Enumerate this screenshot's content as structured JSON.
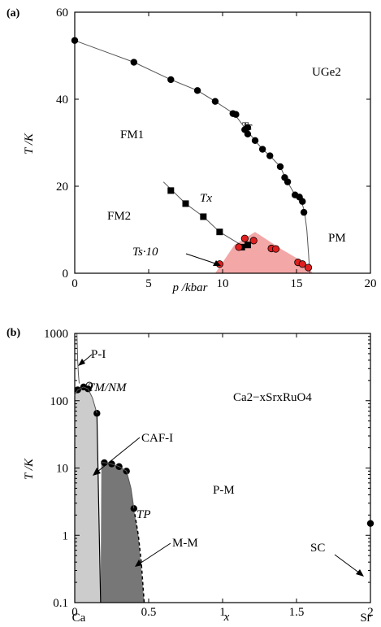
{
  "chart_data": [
    {
      "type": "scatter",
      "panel_label": "(a)",
      "xlabel": "p /kbar",
      "ylabel": "T /K",
      "xlim": [
        0,
        20
      ],
      "ylim": [
        0,
        60
      ],
      "xticks": [
        0,
        5,
        10,
        15,
        20
      ],
      "yticks": [
        0,
        20,
        40,
        60
      ],
      "xtick_labels": [
        "0",
        "5",
        "10",
        "15",
        "20"
      ],
      "ytick_labels": [
        "0",
        "20",
        "40",
        "60"
      ],
      "grid": false,
      "colors": {
        "points": "#000000",
        "red_points": "#e02020",
        "shade": "#f4a7a7"
      },
      "annotations": {
        "material": "UGe2",
        "tc": "Tc",
        "tx": "Tx",
        "ts": "Ts·10",
        "fm1": "FM1",
        "fm2": "FM2",
        "pm": "PM"
      },
      "series": [
        {
          "marker": "circle",
          "values": [
            [
              0,
              53.5
            ],
            [
              4,
              48.5
            ],
            [
              6.5,
              44.5
            ],
            [
              8.3,
              42
            ],
            [
              9.5,
              39.5
            ],
            [
              10.7,
              36.7
            ],
            [
              10.9,
              36.5
            ],
            [
              11.5,
              33
            ],
            [
              11.7,
              33.5
            ],
            [
              11.7,
              32
            ],
            [
              12.2,
              30.5
            ],
            [
              12.7,
              28.5
            ],
            [
              13.2,
              27
            ],
            [
              13.9,
              24.5
            ],
            [
              14.2,
              22
            ],
            [
              14.4,
              21
            ],
            [
              14.9,
              18
            ],
            [
              15.2,
              17.5
            ],
            [
              15.4,
              16.5
            ],
            [
              15.5,
              14
            ]
          ]
        },
        {
          "marker": "square",
          "values": [
            [
              6.5,
              19
            ],
            [
              7.5,
              16
            ],
            [
              8.7,
              13
            ],
            [
              9.8,
              9.5
            ],
            [
              11.3,
              6.0
            ],
            [
              11.7,
              6.5
            ]
          ]
        },
        {
          "marker": "circle-red",
          "values": [
            [
              9.8,
              2.1
            ],
            [
              11.1,
              6.0
            ],
            [
              11.5,
              8.0
            ],
            [
              12.1,
              7.5
            ],
            [
              13.3,
              5.7
            ],
            [
              13.6,
              5.6
            ],
            [
              15.1,
              2.5
            ],
            [
              15.4,
              2.1
            ],
            [
              15.8,
              1.3
            ]
          ]
        }
      ],
      "shaded_region": [
        [
          9.5,
          0
        ],
        [
          10.8,
          6.5
        ],
        [
          12.2,
          9.5
        ],
        [
          14,
          5.5
        ],
        [
          15.5,
          2.5
        ],
        [
          16.1,
          0
        ]
      ],
      "curves": {
        "tc": [
          [
            0,
            53.5
          ],
          [
            4,
            48.5
          ],
          [
            6.5,
            44.5
          ],
          [
            8.3,
            42
          ],
          [
            9.5,
            39.5
          ],
          [
            10.8,
            36.6
          ],
          [
            11.6,
            33
          ],
          [
            12.2,
            30.5
          ],
          [
            12.7,
            28.5
          ],
          [
            13.2,
            27
          ],
          [
            13.9,
            24.5
          ],
          [
            14.3,
            21.5
          ],
          [
            14.9,
            18
          ],
          [
            15.3,
            17
          ],
          [
            15.55,
            14
          ],
          [
            15.7,
            10
          ],
          [
            15.8,
            5
          ],
          [
            15.9,
            0
          ]
        ],
        "tx": [
          [
            6,
            21
          ],
          [
            7.5,
            16
          ],
          [
            8.7,
            13
          ],
          [
            9.8,
            9.5
          ],
          [
            11.5,
            6.0
          ]
        ]
      }
    },
    {
      "type": "scatter",
      "panel_label": "(b)",
      "xlabel": "x",
      "ylabel": "T /K",
      "xscale": "linear",
      "yscale": "log",
      "xlim": [
        0,
        2
      ],
      "ylim": [
        0.1,
        1000
      ],
      "xticks": [
        0,
        0.5,
        1,
        1.5,
        2
      ],
      "yticks": [
        0.1,
        1,
        10,
        100,
        1000
      ],
      "xtick_labels": [
        "0",
        "0.5",
        "1",
        "1.5",
        "2"
      ],
      "ytick_labels": [
        "0.1",
        "1",
        "10",
        "100",
        "1000"
      ],
      "x_end_labels": [
        "Ca",
        "Sr"
      ],
      "grid": false,
      "colors": {
        "points": "#000000",
        "caf_region": "#cccccc",
        "mm_region": "#777777"
      },
      "annotations": {
        "material": "Ca2−xSrxRuO4",
        "pi": "P-I",
        "tmnm": "TM/NM",
        "cafi": "CAF-I",
        "pm": "P-M",
        "tp": "TP",
        "mm": "M-M",
        "sc": "SC"
      },
      "series": [
        {
          "marker": "circle",
          "values": [
            [
              0.02,
              145
            ],
            [
              0.06,
              160
            ],
            [
              0.09,
              150
            ],
            [
              0.15,
              65
            ],
            [
              0.2,
              12
            ],
            [
              0.25,
              11.5
            ],
            [
              0.3,
              10.5
            ],
            [
              0.35,
              9
            ],
            [
              0.4,
              2.5
            ],
            [
              2.0,
              1.5
            ]
          ]
        }
      ]
    }
  ]
}
